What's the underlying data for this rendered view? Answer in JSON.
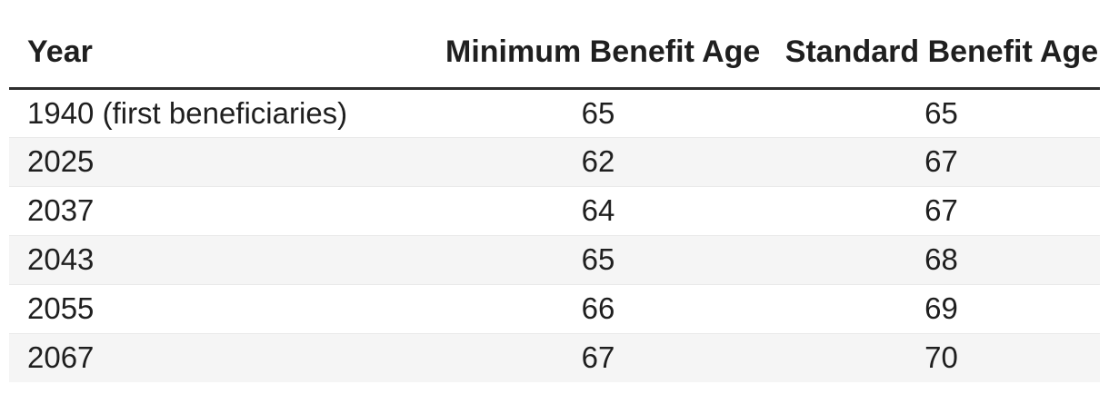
{
  "chart_data": {
    "type": "table",
    "columns": [
      "Year",
      "Minimum Benefit Age",
      "Standard Benefit Age"
    ],
    "rows": [
      [
        "1940 (first beneficiaries)",
        "65",
        "65"
      ],
      [
        "2025",
        "62",
        "67"
      ],
      [
        "2037",
        "64",
        "67"
      ],
      [
        "2043",
        "65",
        "68"
      ],
      [
        "2055",
        "66",
        "69"
      ],
      [
        "2067",
        "67",
        "70"
      ]
    ],
    "layout": {
      "striped_rows": "even",
      "year_column_align": "left",
      "age_columns_align": "center"
    }
  },
  "colors": {
    "text": "#1f1f1f",
    "header_rule": "#2e2e2e",
    "row_stripe": "#f5f5f5",
    "row_divider": "#e9e9e9",
    "background": "#ffffff"
  }
}
